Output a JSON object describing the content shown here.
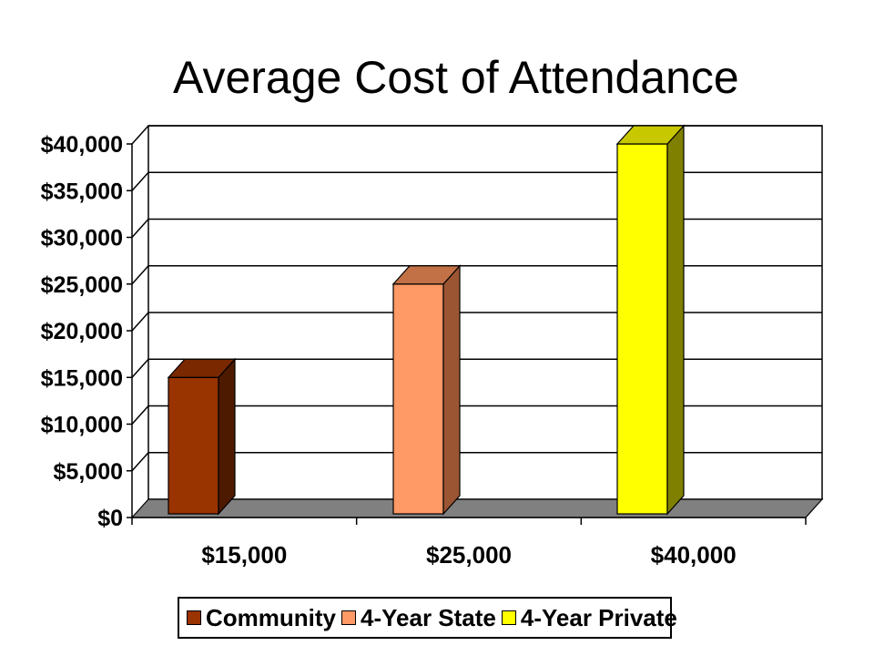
{
  "chart_data": {
    "type": "bar",
    "title": "Average Cost of Attendance",
    "categories": [
      "$15,000",
      "$25,000",
      "$40,000"
    ],
    "series": [
      {
        "name": "Community",
        "values": [
          15000,
          null,
          null
        ],
        "color": "#993300",
        "side": "#4d1a00",
        "top": "#7a2800"
      },
      {
        "name": "4-Year State",
        "values": [
          null,
          25000,
          null
        ],
        "color": "#ff9966",
        "side": "#9b5533",
        "top": "#c27147"
      },
      {
        "name": "4-Year Private",
        "values": [
          null,
          null,
          40000
        ],
        "color": "#ffff00",
        "side": "#808000",
        "top": "#c8c800"
      }
    ],
    "yticks": [
      "$0",
      "$5,000",
      "$10,000",
      "$15,000",
      "$20,000",
      "$25,000",
      "$30,000",
      "$35,000",
      "$40,000"
    ],
    "ylim": [
      0,
      40000
    ],
    "xlabel": "",
    "ylabel": "",
    "grid": true,
    "legend_position": "bottom",
    "floor_color": "#808080"
  }
}
